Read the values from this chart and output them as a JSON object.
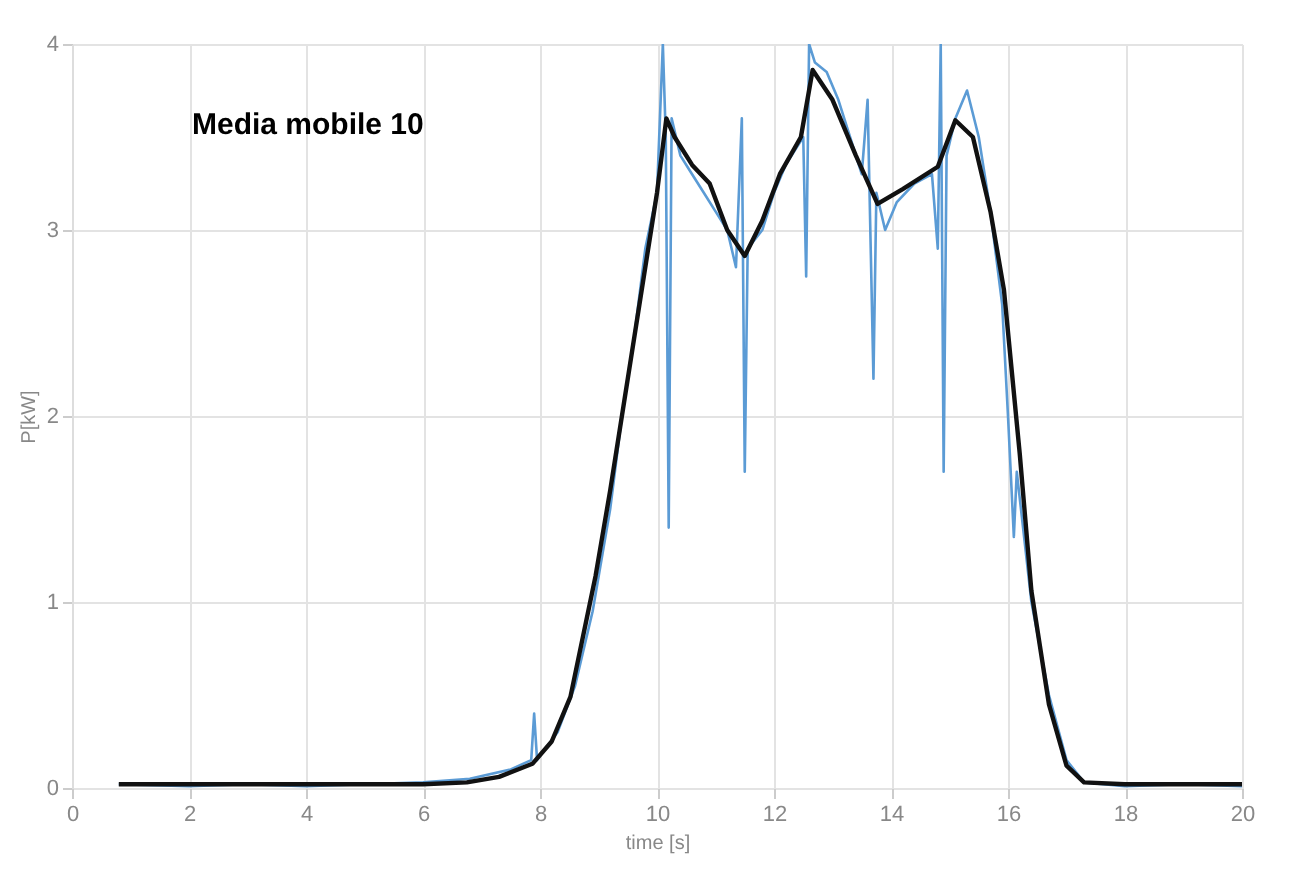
{
  "chart_data": {
    "type": "line",
    "xlabel": "time [s]",
    "ylabel": "P[kW]",
    "annotations": [
      "Media mobile 10"
    ],
    "xlim": [
      0,
      20
    ],
    "xticks": [
      0,
      2,
      4,
      6,
      8,
      10,
      12,
      14,
      16,
      18,
      20
    ],
    "ylim": [
      0,
      4
    ],
    "yticks": [
      0,
      1,
      2,
      3,
      4
    ],
    "grid": true,
    "marker": "none",
    "line_style": "solid",
    "series": [
      {
        "color": "#5b9bd5",
        "x": [
          0.8,
          2,
          3,
          4,
          5,
          6,
          6.8,
          7.5,
          7.85,
          7.9,
          7.95,
          8.3,
          8.6,
          8.9,
          9.2,
          9.4,
          9.6,
          9.8,
          10.0,
          10.1,
          10.15,
          10.2,
          10.25,
          10.4,
          10.6,
          10.8,
          11.0,
          11.2,
          11.35,
          11.45,
          11.5,
          11.55,
          11.8,
          12.0,
          12.2,
          12.5,
          12.55,
          12.6,
          12.7,
          12.9,
          13.1,
          13.3,
          13.5,
          13.6,
          13.7,
          13.75,
          13.9,
          14.1,
          14.4,
          14.7,
          14.8,
          14.85,
          14.9,
          14.95,
          15.1,
          15.3,
          15.5,
          15.7,
          15.9,
          16.0,
          16.1,
          16.15,
          16.4,
          16.7,
          17.0,
          17.3,
          18,
          19,
          20
        ],
        "values": [
          0.02,
          0.01,
          0.02,
          0.01,
          0.02,
          0.03,
          0.05,
          0.1,
          0.15,
          0.4,
          0.15,
          0.3,
          0.55,
          0.95,
          1.5,
          2.0,
          2.4,
          2.9,
          3.2,
          4.0,
          3.5,
          1.4,
          3.6,
          3.4,
          3.3,
          3.2,
          3.1,
          3.0,
          2.8,
          3.6,
          1.7,
          2.9,
          3.0,
          3.2,
          3.35,
          3.5,
          2.75,
          4.0,
          3.9,
          3.85,
          3.7,
          3.5,
          3.3,
          3.7,
          2.2,
          3.2,
          3.0,
          3.15,
          3.25,
          3.3,
          2.9,
          4.0,
          1.7,
          3.4,
          3.6,
          3.75,
          3.5,
          3.1,
          2.6,
          2.0,
          1.35,
          1.7,
          1.0,
          0.5,
          0.15,
          0.03,
          0.01,
          0.02,
          0.01
        ]
      },
      {
        "color": "#111111",
        "x": [
          0.8,
          2,
          4,
          6,
          6.75,
          7.3,
          7.87,
          8.2,
          8.52,
          8.95,
          9.2,
          9.5,
          9.7,
          10.0,
          10.16,
          10.3,
          10.6,
          10.9,
          11.2,
          11.5,
          11.8,
          12.1,
          12.46,
          12.66,
          13.0,
          13.4,
          13.77,
          14.2,
          14.8,
          15.1,
          15.4,
          15.7,
          15.93,
          16.2,
          16.4,
          16.7,
          17.0,
          17.3,
          18,
          20
        ],
        "values": [
          0.02,
          0.02,
          0.02,
          0.02,
          0.03,
          0.06,
          0.13,
          0.25,
          0.49,
          1.14,
          1.6,
          2.2,
          2.6,
          3.2,
          3.6,
          3.5,
          3.35,
          3.25,
          3.0,
          2.86,
          3.05,
          3.3,
          3.5,
          3.86,
          3.7,
          3.4,
          3.14,
          3.22,
          3.34,
          3.59,
          3.5,
          3.1,
          2.68,
          1.8,
          1.06,
          0.45,
          0.12,
          0.03,
          0.02,
          0.02
        ]
      }
    ]
  }
}
